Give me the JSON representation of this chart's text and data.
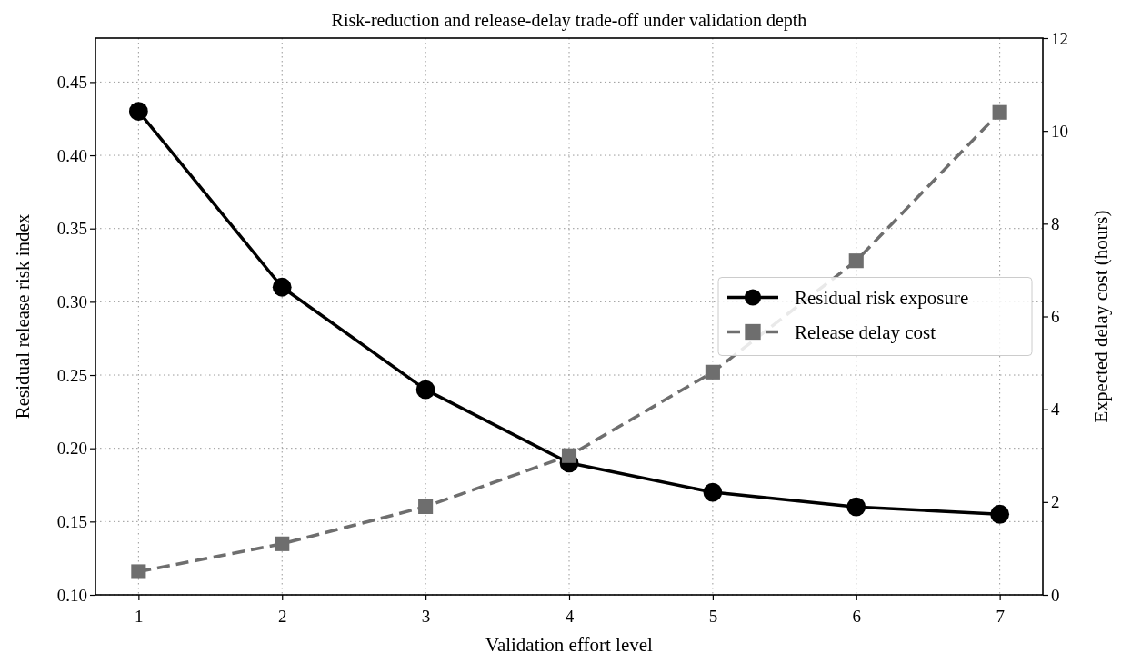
{
  "chart_data": {
    "type": "line",
    "title": "Risk-reduction and release-delay trade-off under validation depth",
    "xlabel": "Validation effort level",
    "ylabel": "Residual release risk index",
    "y2label": "Expected delay cost (hours)",
    "x": [
      1,
      2,
      3,
      4,
      5,
      6,
      7
    ],
    "xlim": [
      0.7,
      7.3
    ],
    "xticks": [
      1,
      2,
      3,
      4,
      5,
      6,
      7
    ],
    "ylim": [
      0.1,
      0.48
    ],
    "yticks": [
      {
        "value": 0.1,
        "label": "0.10"
      },
      {
        "value": 0.15,
        "label": "0.15"
      },
      {
        "value": 0.2,
        "label": "0.20"
      },
      {
        "value": 0.25,
        "label": "0.25"
      },
      {
        "value": 0.3,
        "label": "0.30"
      },
      {
        "value": 0.35,
        "label": "0.35"
      },
      {
        "value": 0.4,
        "label": "0.40"
      },
      {
        "value": 0.45,
        "label": "0.45"
      }
    ],
    "y2lim": [
      0,
      12
    ],
    "y2ticks": [
      0,
      2,
      4,
      6,
      8,
      10,
      12
    ],
    "grid": true,
    "legend": "right",
    "series": [
      {
        "name": "Residual risk exposure",
        "color": "#000000",
        "marker": "circle",
        "line_style": "solid",
        "values": [
          0.43,
          0.31,
          0.24,
          0.19,
          0.17,
          0.16,
          0.155
        ]
      },
      {
        "name": "Release delay cost",
        "color": "#6e6e6e",
        "marker": "square",
        "line_style": "dashed",
        "axis": "y2",
        "values": [
          0.5,
          1.1,
          1.9,
          3.0,
          4.8,
          7.2,
          10.4
        ]
      }
    ]
  }
}
